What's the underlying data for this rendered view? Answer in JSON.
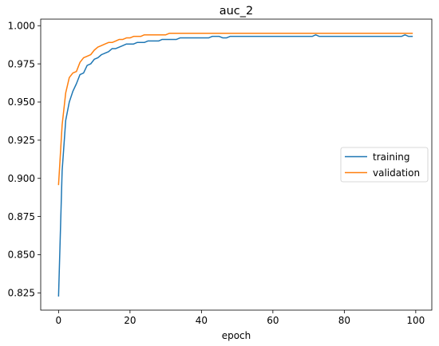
{
  "chart_data": {
    "type": "line",
    "title": "auc_2",
    "xlabel": "epoch",
    "ylabel": "",
    "xlim": [
      -5,
      104.5
    ],
    "ylim": [
      0.8137,
      1.0043
    ],
    "xticks": [
      0,
      20,
      40,
      60,
      80,
      100
    ],
    "xtick_labels": [
      "0",
      "20",
      "40",
      "60",
      "80",
      "100"
    ],
    "yticks": [
      0.825,
      0.85,
      0.875,
      0.9,
      0.925,
      0.95,
      0.975,
      1.0
    ],
    "ytick_labels": [
      "0.825",
      "0.850",
      "0.875",
      "0.900",
      "0.925",
      "0.950",
      "0.975",
      "1.000"
    ],
    "grid": false,
    "legend_position": "center right",
    "series": [
      {
        "name": "training",
        "color": "#1f77b4",
        "x": [
          0,
          1,
          2,
          3,
          4,
          5,
          6,
          7,
          8,
          9,
          10,
          11,
          12,
          13,
          14,
          15,
          16,
          17,
          18,
          19,
          20,
          21,
          22,
          23,
          24,
          25,
          26,
          27,
          28,
          29,
          30,
          31,
          32,
          33,
          34,
          35,
          36,
          37,
          38,
          39,
          40,
          41,
          42,
          43,
          44,
          45,
          46,
          47,
          48,
          49,
          50,
          51,
          52,
          53,
          54,
          55,
          56,
          57,
          58,
          59,
          60,
          61,
          62,
          63,
          64,
          65,
          66,
          67,
          68,
          69,
          70,
          71,
          72,
          73,
          74,
          75,
          76,
          77,
          78,
          79,
          80,
          81,
          82,
          83,
          84,
          85,
          86,
          87,
          88,
          89,
          90,
          91,
          92,
          93,
          94,
          95,
          96,
          97,
          98,
          99
        ],
        "values": [
          0.823,
          0.905,
          0.938,
          0.95,
          0.957,
          0.962,
          0.968,
          0.969,
          0.974,
          0.975,
          0.978,
          0.979,
          0.981,
          0.982,
          0.983,
          0.985,
          0.985,
          0.986,
          0.987,
          0.988,
          0.988,
          0.988,
          0.989,
          0.989,
          0.989,
          0.99,
          0.99,
          0.99,
          0.99,
          0.991,
          0.991,
          0.991,
          0.991,
          0.991,
          0.992,
          0.992,
          0.992,
          0.992,
          0.992,
          0.992,
          0.992,
          0.992,
          0.992,
          0.993,
          0.993,
          0.993,
          0.992,
          0.992,
          0.993,
          0.993,
          0.993,
          0.993,
          0.993,
          0.993,
          0.993,
          0.993,
          0.993,
          0.993,
          0.993,
          0.993,
          0.993,
          0.993,
          0.993,
          0.993,
          0.993,
          0.993,
          0.993,
          0.993,
          0.993,
          0.993,
          0.993,
          0.993,
          0.994,
          0.993,
          0.993,
          0.993,
          0.993,
          0.993,
          0.993,
          0.993,
          0.993,
          0.993,
          0.993,
          0.993,
          0.993,
          0.993,
          0.993,
          0.993,
          0.993,
          0.993,
          0.993,
          0.993,
          0.993,
          0.993,
          0.993,
          0.993,
          0.993,
          0.994,
          0.993,
          0.993
        ]
      },
      {
        "name": "validation",
        "color": "#ff7f0e",
        "x": [
          0,
          1,
          2,
          3,
          4,
          5,
          6,
          7,
          8,
          9,
          10,
          11,
          12,
          13,
          14,
          15,
          16,
          17,
          18,
          19,
          20,
          21,
          22,
          23,
          24,
          25,
          26,
          27,
          28,
          29,
          30,
          31,
          32,
          33,
          34,
          35,
          36,
          37,
          38,
          39,
          40,
          41,
          42,
          43,
          44,
          45,
          46,
          47,
          48,
          49,
          50,
          51,
          52,
          53,
          54,
          55,
          56,
          57,
          58,
          59,
          60,
          61,
          62,
          63,
          64,
          65,
          66,
          67,
          68,
          69,
          70,
          71,
          72,
          73,
          74,
          75,
          76,
          77,
          78,
          79,
          80,
          81,
          82,
          83,
          84,
          85,
          86,
          87,
          88,
          89,
          90,
          91,
          92,
          93,
          94,
          95,
          96,
          97,
          98,
          99
        ],
        "values": [
          0.896,
          0.935,
          0.956,
          0.966,
          0.969,
          0.97,
          0.976,
          0.979,
          0.98,
          0.981,
          0.984,
          0.986,
          0.987,
          0.988,
          0.989,
          0.989,
          0.99,
          0.991,
          0.991,
          0.992,
          0.992,
          0.993,
          0.993,
          0.993,
          0.994,
          0.994,
          0.994,
          0.994,
          0.994,
          0.994,
          0.994,
          0.995,
          0.995,
          0.995,
          0.995,
          0.995,
          0.995,
          0.995,
          0.995,
          0.995,
          0.995,
          0.995,
          0.995,
          0.995,
          0.995,
          0.995,
          0.995,
          0.995,
          0.995,
          0.995,
          0.995,
          0.995,
          0.995,
          0.995,
          0.995,
          0.995,
          0.995,
          0.995,
          0.995,
          0.995,
          0.995,
          0.995,
          0.995,
          0.995,
          0.995,
          0.995,
          0.995,
          0.995,
          0.995,
          0.995,
          0.995,
          0.995,
          0.995,
          0.995,
          0.995,
          0.995,
          0.995,
          0.995,
          0.995,
          0.995,
          0.995,
          0.995,
          0.995,
          0.995,
          0.995,
          0.995,
          0.995,
          0.995,
          0.995,
          0.995,
          0.995,
          0.995,
          0.995,
          0.995,
          0.995,
          0.995,
          0.995,
          0.995,
          0.995,
          0.995
        ]
      }
    ]
  }
}
